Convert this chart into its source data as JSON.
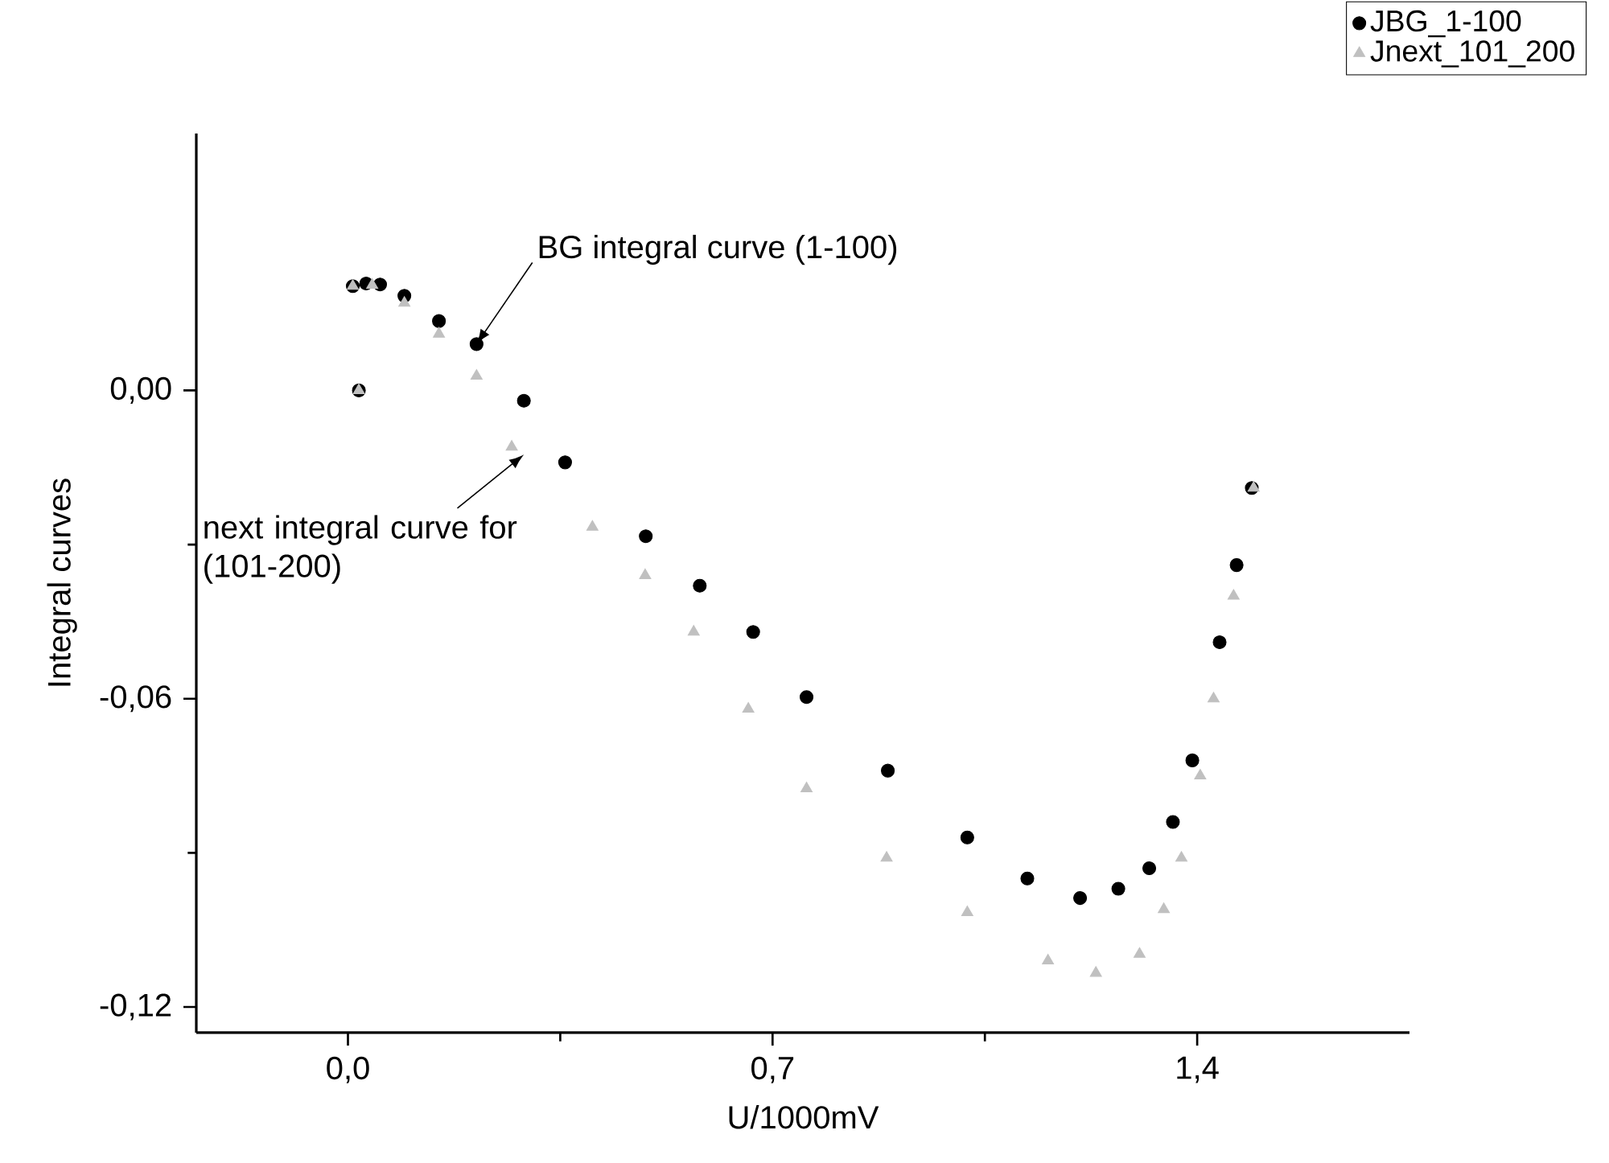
{
  "chart_data": {
    "type": "scatter",
    "xlabel": "U/1000mV",
    "ylabel": "Integral curves",
    "xlim": [
      -0.25,
      1.75
    ],
    "ylim": [
      -0.125,
      0.05
    ],
    "xticks": [
      {
        "value": 0,
        "label": "0,0"
      },
      {
        "value": 0.7,
        "label": "0,7"
      },
      {
        "value": 1.4,
        "label": "1,4"
      }
    ],
    "yticks": [
      {
        "value": -0.12,
        "label": "-0,12"
      },
      {
        "value": -0.06,
        "label": "-0,06"
      },
      {
        "value": 0,
        "label": "0,00"
      }
    ],
    "legend": "top right",
    "grid": false,
    "series": [
      {
        "name": "JBG_1-100",
        "color": "#000000",
        "marker": "circle",
        "x": [
          0.018,
          0.008,
          0.03,
          0.053,
          0.093,
          0.15,
          0.212,
          0.29,
          0.358,
          0.491,
          0.58,
          0.668,
          0.756,
          0.89,
          1.021,
          1.12,
          1.207,
          1.27,
          1.321,
          1.36,
          1.392,
          1.437,
          1.465,
          1.49
        ],
        "values": [
          0.0,
          0.0203,
          0.0208,
          0.0206,
          0.0184,
          0.0135,
          0.009,
          -0.002,
          -0.014,
          -0.0284,
          -0.038,
          -0.047,
          -0.0597,
          -0.074,
          -0.087,
          -0.095,
          -0.0988,
          -0.097,
          -0.093,
          -0.084,
          -0.072,
          -0.049,
          -0.034,
          -0.019
        ]
      },
      {
        "name": "Jnext_101_200",
        "color": "#c0c0c0",
        "marker": "triangle",
        "x": [
          0.018,
          0.008,
          0.04,
          0.093,
          0.15,
          0.212,
          0.27,
          0.403,
          0.49,
          0.57,
          0.66,
          0.756,
          0.888,
          1.021,
          1.154,
          1.233,
          1.305,
          1.345,
          1.374,
          1.405,
          1.427,
          1.46,
          1.493
        ],
        "values": [
          0.0,
          0.0203,
          0.0205,
          0.017,
          0.011,
          0.0028,
          -0.011,
          -0.0266,
          -0.036,
          -0.047,
          -0.062,
          -0.0775,
          -0.091,
          -0.1016,
          -0.111,
          -0.1134,
          -0.1097,
          -0.101,
          -0.091,
          -0.075,
          -0.06,
          -0.04,
          -0.019
        ]
      }
    ],
    "annotations": [
      {
        "text": "BG integral curve (1-100)",
        "x": 0.212,
        "y": 0.009
      },
      {
        "text": "next integral curve for (101-200)",
        "x": 0.29,
        "y": -0.0125
      }
    ]
  }
}
